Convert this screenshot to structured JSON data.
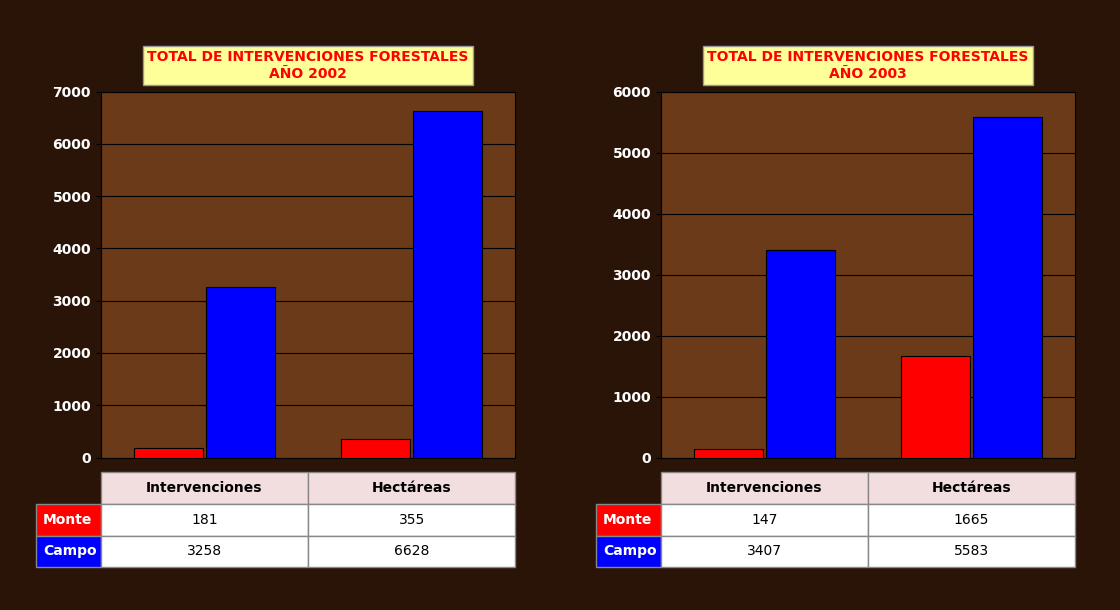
{
  "chart_data": [
    {
      "type": "bar",
      "title": "TOTAL DE INTERVENCIONES FORESTALES\nAÑO 2002",
      "categories": [
        "Intervenciones",
        "Hectáreas"
      ],
      "series": [
        {
          "name": "Monte",
          "color": "#ff0000",
          "values": [
            181,
            355
          ]
        },
        {
          "name": "Campo",
          "color": "#0000ff",
          "values": [
            3258,
            6628
          ]
        }
      ],
      "ylim": [
        0,
        7000
      ],
      "yticks": [
        0,
        1000,
        2000,
        3000,
        4000,
        5000,
        6000,
        7000
      ],
      "grid": true
    },
    {
      "type": "bar",
      "title": "TOTAL DE INTERVENCIONES FORESTALES\nAÑO 2003",
      "categories": [
        "Intervenciones",
        "Hectáreas"
      ],
      "series": [
        {
          "name": "Monte",
          "color": "#ff0000",
          "values": [
            147,
            1665
          ]
        },
        {
          "name": "Campo",
          "color": "#0000ff",
          "values": [
            3407,
            5583
          ]
        }
      ],
      "ylim": [
        0,
        6000
      ],
      "yticks": [
        0,
        1000,
        2000,
        3000,
        4000,
        5000,
        6000
      ],
      "grid": true
    }
  ]
}
